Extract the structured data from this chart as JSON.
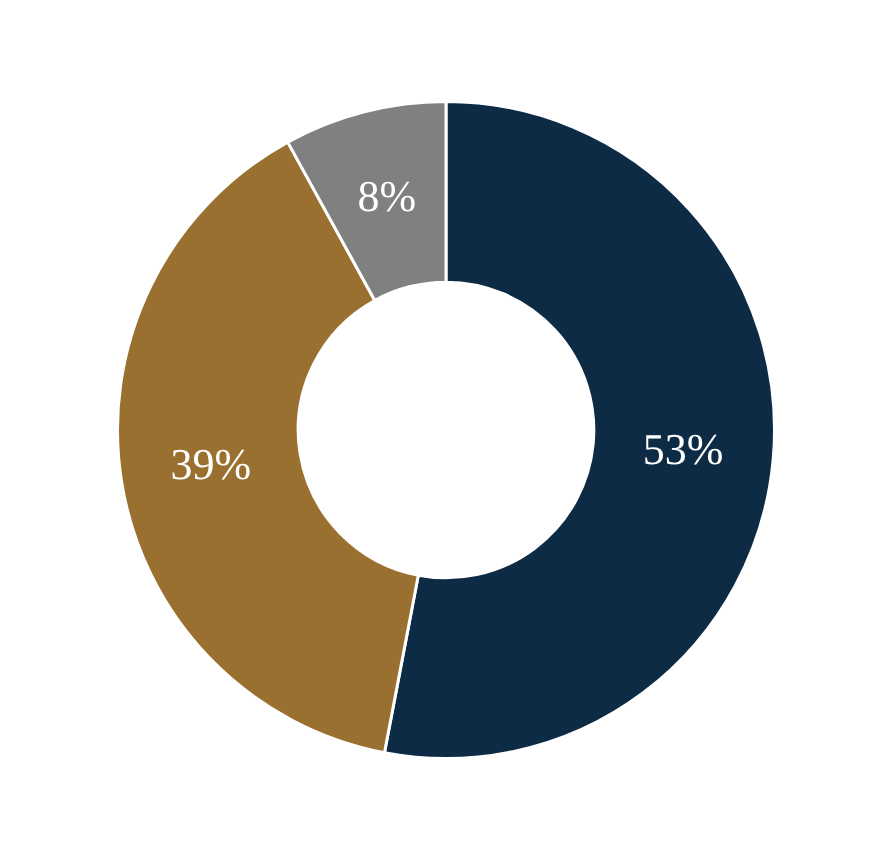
{
  "chart_data": {
    "type": "donut",
    "categories": [
      null,
      null,
      null
    ],
    "values": [
      53,
      39,
      8
    ],
    "colors": [
      "#0d2b45",
      "#9a7030",
      "#808080"
    ],
    "value_labels": [
      "53%",
      "39%",
      "8%"
    ],
    "legend": false
  }
}
